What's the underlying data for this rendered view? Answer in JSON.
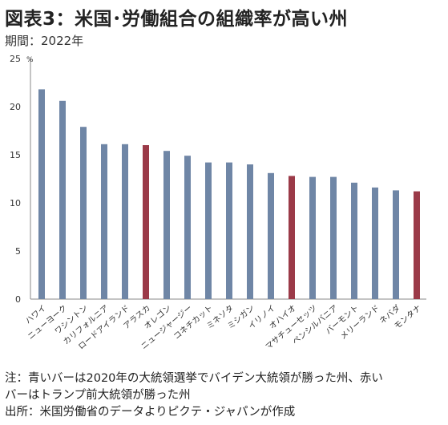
{
  "header": {
    "title": "図表3：米国･労働組合の組織率が高い州",
    "period": "期間：2022年"
  },
  "colors": {
    "blue_bar": "#6f86a6",
    "red_bar": "#9b3a48",
    "axis": "#888888"
  },
  "chart_data": {
    "type": "bar",
    "title": "図表3：米国･労働組合の組織率が高い州",
    "ylabel": "%",
    "xlabel": "",
    "ylim": [
      0,
      25
    ],
    "yticks": [
      0,
      5,
      10,
      15,
      20,
      25
    ],
    "grid": false,
    "categories": [
      "ハワイ",
      "ニューヨーク",
      "ワシントン",
      "カリフォルニア",
      "ロードアイランド",
      "アラスカ",
      "オレゴン",
      "ニュージャージー",
      "コネチカット",
      "ミネソタ",
      "ミシガン",
      "イリノイ",
      "オハイオ",
      "マサチューセッツ",
      "ペンシルバニア",
      "バーモント",
      "メリーランド",
      "ネバダ",
      "モンタナ"
    ],
    "values": [
      21.8,
      20.6,
      17.9,
      16.1,
      16.1,
      16.0,
      15.4,
      14.9,
      14.2,
      14.2,
      14.0,
      13.1,
      12.8,
      12.7,
      12.7,
      12.1,
      11.6,
      11.3,
      11.2
    ],
    "bar_colors": [
      "blue",
      "blue",
      "blue",
      "blue",
      "blue",
      "red",
      "blue",
      "blue",
      "blue",
      "blue",
      "blue",
      "blue",
      "red",
      "blue",
      "blue",
      "blue",
      "blue",
      "blue",
      "red"
    ]
  },
  "notes": {
    "line1": "注：青いバーは2020年の大統領選挙でバイデン大統領が勝った州、赤い",
    "line2": "バーはトランプ前大統領が勝った州",
    "source": "出所：米国労働省のデータよりピクテ・ジャパンが作成"
  }
}
